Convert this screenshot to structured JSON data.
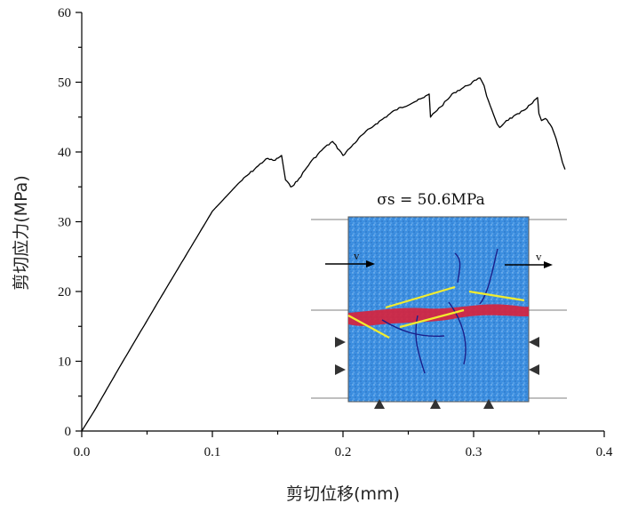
{
  "chart_data": {
    "type": "line",
    "xlabel": "剪切位移(mm)",
    "ylabel": "剪切应力(MPa)",
    "xlim": [
      0.0,
      0.4
    ],
    "ylim": [
      0,
      60
    ],
    "x_ticks": [
      "0.0",
      "0.1",
      "0.2",
      "0.3",
      "0.4"
    ],
    "y_ticks": [
      "0",
      "10",
      "20",
      "30",
      "40",
      "50",
      "60"
    ],
    "grid": false,
    "series": [
      {
        "x": [
          0.0,
          0.01,
          0.03,
          0.06,
          0.1,
          0.12,
          0.135,
          0.141,
          0.148,
          0.153,
          0.156,
          0.16,
          0.165,
          0.175,
          0.185,
          0.192,
          0.197,
          0.2,
          0.205,
          0.215,
          0.225,
          0.24,
          0.255,
          0.262,
          0.266,
          0.267,
          0.269,
          0.275,
          0.285,
          0.295,
          0.302,
          0.305,
          0.308,
          0.31,
          0.318,
          0.32,
          0.325,
          0.335,
          0.345,
          0.349,
          0.35,
          0.352,
          0.355,
          0.36,
          0.363,
          0.366,
          0.368,
          0.37
        ],
        "y": [
          0.0,
          3.0,
          9.5,
          19.0,
          31.5,
          35.5,
          38.0,
          39.0,
          38.8,
          39.5,
          36.0,
          35.0,
          35.8,
          38.5,
          40.5,
          41.5,
          40.3,
          39.5,
          40.5,
          42.5,
          44.0,
          46.0,
          47.2,
          47.8,
          48.3,
          45.0,
          45.5,
          46.5,
          48.5,
          49.5,
          50.3,
          50.6,
          49.5,
          48.0,
          44.0,
          43.5,
          44.5,
          45.5,
          47.0,
          47.8,
          45.5,
          44.5,
          44.8,
          43.5,
          42.0,
          40.0,
          38.5,
          37.5
        ]
      }
    ],
    "inset": {
      "title": "σs = 50.6MPa",
      "velocity_left": "v",
      "velocity_right": "v"
    }
  }
}
